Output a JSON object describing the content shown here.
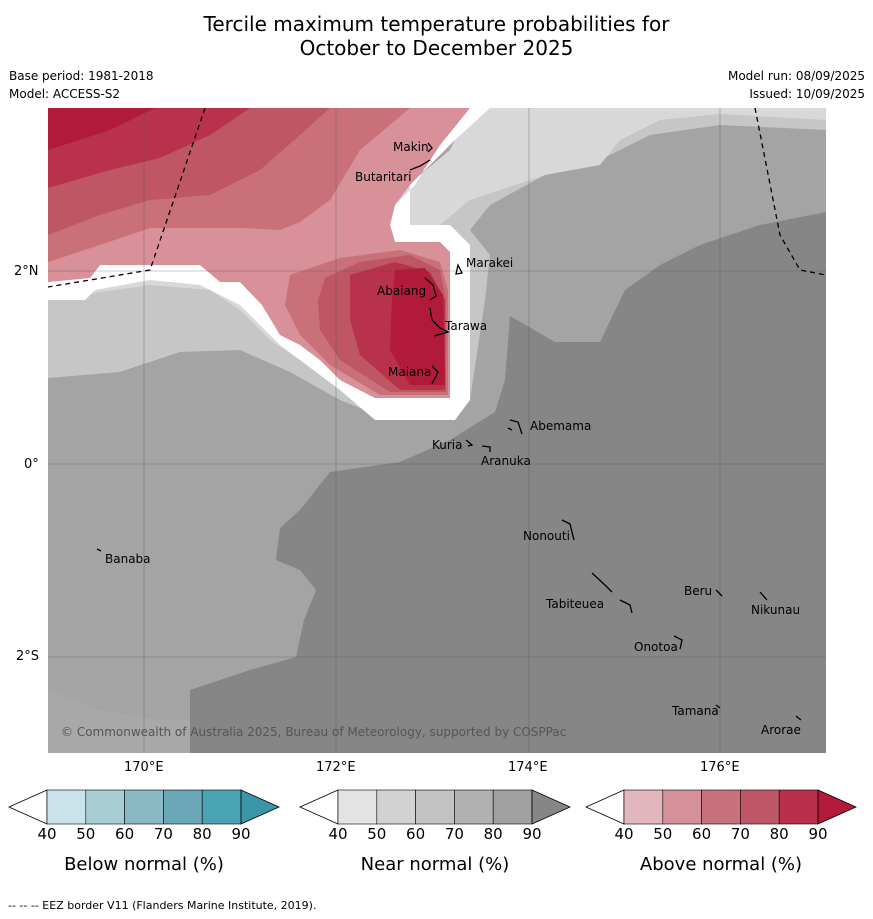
{
  "header": {
    "title_line1": "Tercile maximum temperature probabilities for",
    "title_line2": "October to December 2025",
    "base_period": "Base period: 1981-2018",
    "model": "Model: ACCESS-S2",
    "model_run": "Model run: 08/09/2025",
    "issued": "Issued: 10/09/2025"
  },
  "map": {
    "lat_labels": [
      "2°N",
      "0°",
      "2°S"
    ],
    "lon_labels": [
      "170°E",
      "172°E",
      "174°E",
      "176°E"
    ],
    "places": [
      "Makin",
      "Butaritari",
      "Marakei",
      "Abaiang",
      "Tarawa",
      "Maiana",
      "Abemama",
      "Kuria",
      "Aranuka",
      "Banaba",
      "Nonouti",
      "Tabiteuea",
      "Beru",
      "Nikunau",
      "Onotoa",
      "Tamana",
      "Arorae"
    ],
    "copyright": "© Commonwealth of Australia 2025, Bureau of Meteorology, supported by COSPPac"
  },
  "colorbars": [
    {
      "title": "Below normal (%)",
      "ticks": [
        "40",
        "50",
        "60",
        "70",
        "80",
        "90"
      ],
      "colors": [
        "#c9e3ea",
        "#a8cdd5",
        "#8ab8c4",
        "#6aa8b8",
        "#4aa3b3",
        "#3a95a8"
      ]
    },
    {
      "title": "Near normal (%)",
      "ticks": [
        "40",
        "50",
        "60",
        "70",
        "80",
        "90"
      ],
      "colors": [
        "#e3e3e3",
        "#d2d2d2",
        "#c2c2c2",
        "#b1b1b1",
        "#a1a1a1",
        "#868686"
      ]
    },
    {
      "title": "Above normal (%)",
      "ticks": [
        "40",
        "50",
        "60",
        "70",
        "80",
        "90"
      ],
      "colors": [
        "#e2b6bd",
        "#d4919a",
        "#c9727c",
        "#bf5866",
        "#b8304a",
        "#b21a3a"
      ]
    }
  ],
  "footnote": "--  --  -- EEZ border V11 (Flanders Marine Institute, 2019)."
}
